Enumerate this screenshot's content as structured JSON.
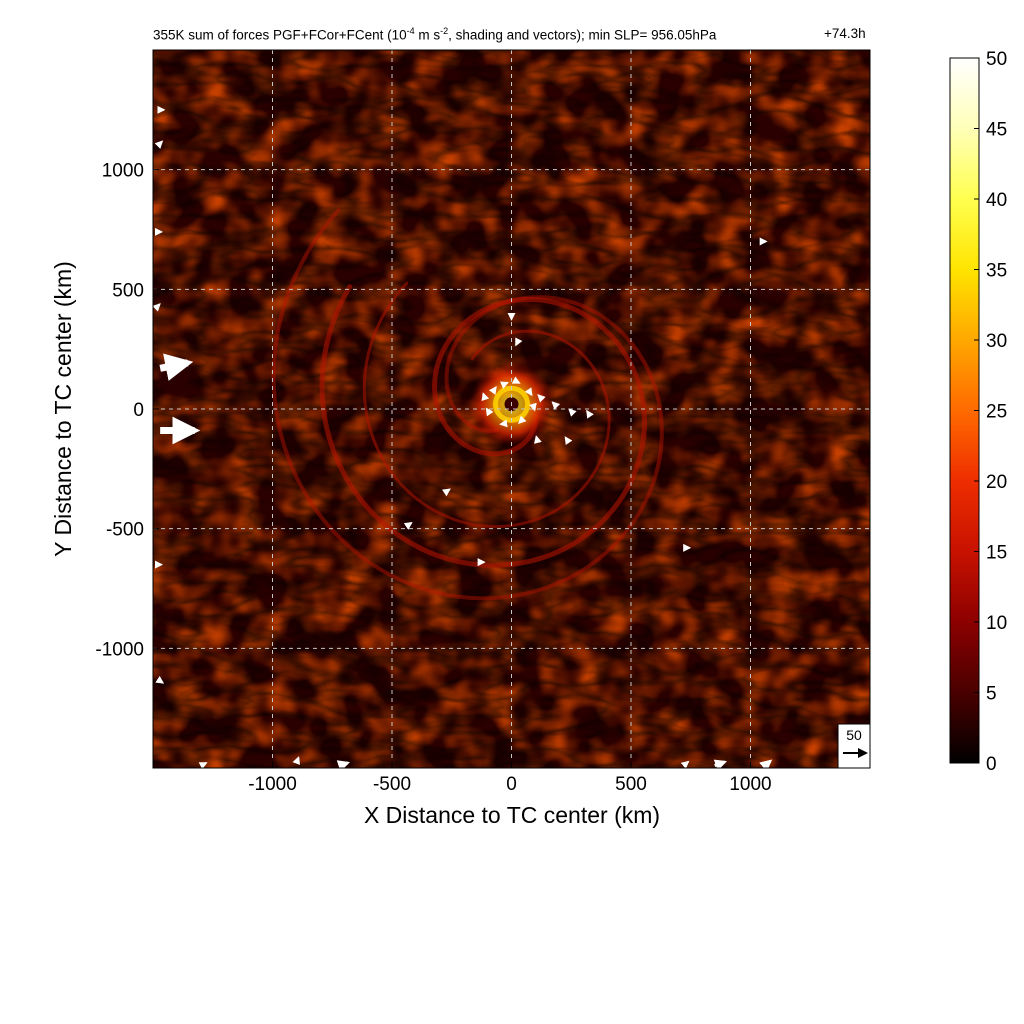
{
  "header": {
    "title_prefix": "355K sum of forces PGF+FCor+FCent (10",
    "title_exp1": "-4",
    "title_mid": " m s",
    "title_exp2": "-2",
    "title_suffix": ", shading and vectors); min SLP= 956.05hPa",
    "timestamp": "+74.3h"
  },
  "chart_data": {
    "type": "heatmap",
    "xlabel": "X Distance to TC center (km)",
    "ylabel": "Y Distance to TC center (km)",
    "xlim": [
      -1500,
      1500
    ],
    "ylim": [
      -1500,
      1500
    ],
    "x_ticks": [
      -1000,
      -500,
      0,
      500,
      1000
    ],
    "y_ticks": [
      -1000,
      -500,
      0,
      500,
      1000
    ],
    "grid": true,
    "grid_style": "dashed",
    "colorbar": {
      "min": 0,
      "max": 50,
      "ticks": [
        0,
        5,
        10,
        15,
        20,
        25,
        30,
        35,
        40,
        45,
        50
      ],
      "colors": [
        "#000000",
        "#4a0000",
        "#8c0000",
        "#c81200",
        "#ee2e00",
        "#ff6a00",
        "#ffa800",
        "#ffe400",
        "#ffff50",
        "#ffffb8",
        "#ffffff"
      ]
    },
    "reference_vector": {
      "magnitude": 50,
      "label": "50"
    },
    "features": {
      "core_max_value": 38,
      "core_center_km": [
        0,
        20
      ]
    },
    "vectors": [
      {
        "x": -1470,
        "y": 170,
        "u": 60,
        "v": 12
      },
      {
        "x": -1470,
        "y": -90,
        "u": 75,
        "v": 0
      },
      {
        "x": -1480,
        "y": 1250,
        "u": 10,
        "v": 0
      },
      {
        "x": -1480,
        "y": 1100,
        "u": 8,
        "v": 8
      },
      {
        "x": -1490,
        "y": 740,
        "u": 4,
        "v": 0
      },
      {
        "x": -1490,
        "y": 420,
        "u": 4,
        "v": 4
      },
      {
        "x": -1480,
        "y": -1130,
        "u": 6,
        "v": -4
      },
      {
        "x": -1490,
        "y": -650,
        "u": 5,
        "v": 0
      },
      {
        "x": -80,
        "y": 70,
        "u": 5,
        "v": 7
      },
      {
        "x": -40,
        "y": 100,
        "u": 7,
        "v": 3
      },
      {
        "x": 10,
        "y": 120,
        "u": 6,
        "v": -3
      },
      {
        "x": 70,
        "y": 80,
        "u": 4,
        "v": -6
      },
      {
        "x": 90,
        "y": 20,
        "u": 2,
        "v": -7
      },
      {
        "x": 50,
        "y": -40,
        "u": -5,
        "v": -5
      },
      {
        "x": -20,
        "y": -60,
        "u": -7,
        "v": -1
      },
      {
        "x": -90,
        "y": -20,
        "u": -4,
        "v": 6
      },
      {
        "x": -110,
        "y": 40,
        "u": -2,
        "v": 6
      },
      {
        "x": 130,
        "y": 40,
        "u": -3,
        "v": 3
      },
      {
        "x": 190,
        "y": 10,
        "u": -3,
        "v": 3
      },
      {
        "x": 260,
        "y": -20,
        "u": -3,
        "v": 3
      },
      {
        "x": 330,
        "y": -30,
        "u": -2,
        "v": 3
      },
      {
        "x": 110,
        "y": -140,
        "u": -1,
        "v": 4
      },
      {
        "x": 240,
        "y": -140,
        "u": -2,
        "v": 3
      },
      {
        "x": 30,
        "y": 290,
        "u": -2,
        "v": -4
      },
      {
        "x": 0,
        "y": 400,
        "u": 0,
        "v": -4
      },
      {
        "x": -280,
        "y": -350,
        "u": 3,
        "v": 2
      },
      {
        "x": -440,
        "y": -490,
        "u": 3,
        "v": 2
      },
      {
        "x": -140,
        "y": -640,
        "u": 3,
        "v": 0
      },
      {
        "x": 720,
        "y": -580,
        "u": 2,
        "v": 0
      },
      {
        "x": 1040,
        "y": 700,
        "u": 2,
        "v": 0
      },
      {
        "x": 850,
        "y": -1490,
        "u": 22,
        "v": 8
      },
      {
        "x": 1060,
        "y": -1490,
        "u": 12,
        "v": 10
      },
      {
        "x": -720,
        "y": -1490,
        "u": 18,
        "v": 6
      },
      {
        "x": -900,
        "y": -1480,
        "u": 3,
        "v": 8
      },
      {
        "x": -1300,
        "y": -1490,
        "u": 4,
        "v": 2
      },
      {
        "x": 720,
        "y": -1490,
        "u": 6,
        "v": 5
      }
    ]
  }
}
